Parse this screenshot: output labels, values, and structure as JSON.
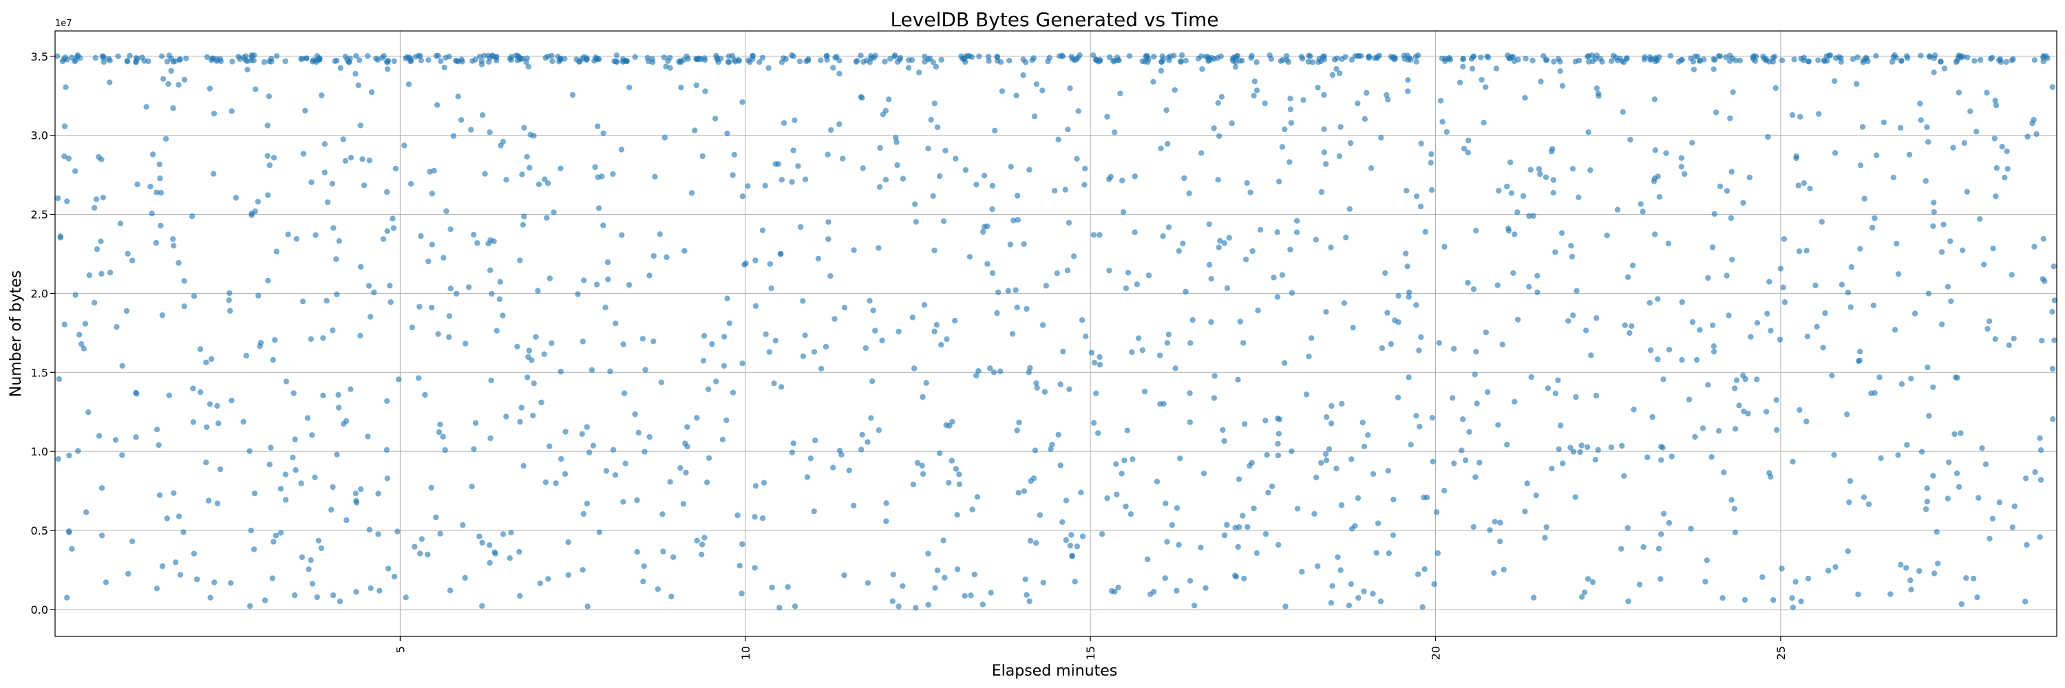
{
  "chart_data": {
    "type": "scatter",
    "title": "LevelDB Bytes Generated vs Time",
    "xlabel": "Elapsed minutes",
    "ylabel": "Number of bytes",
    "y_offset_label": "1e7",
    "xlim": [
      0.0,
      29.0
    ],
    "ylim": [
      -1700000,
      36600000
    ],
    "x_ticks": [
      5,
      10,
      15,
      20,
      25
    ],
    "y_ticks": [
      0,
      5000000,
      10000000,
      15000000,
      20000000,
      25000000,
      30000000,
      35000000
    ],
    "y_tick_labels": [
      "0.0",
      "0.5",
      "1.0",
      "1.5",
      "2.0",
      "2.5",
      "3.0",
      "3.5"
    ],
    "grid": true,
    "legend": "none",
    "marker_color": "#1f77b4",
    "marker_alpha": 0.6,
    "points_generation": {
      "description": "Dense scatter; a tight band of points near the ~34.8M byte ceiling roughly every 0.5 minute, with many points spread uniformly between 0 and 35M at every time step.",
      "x_start": 0.0,
      "x_end": 29.0,
      "cap_value": 34800000
    }
  }
}
